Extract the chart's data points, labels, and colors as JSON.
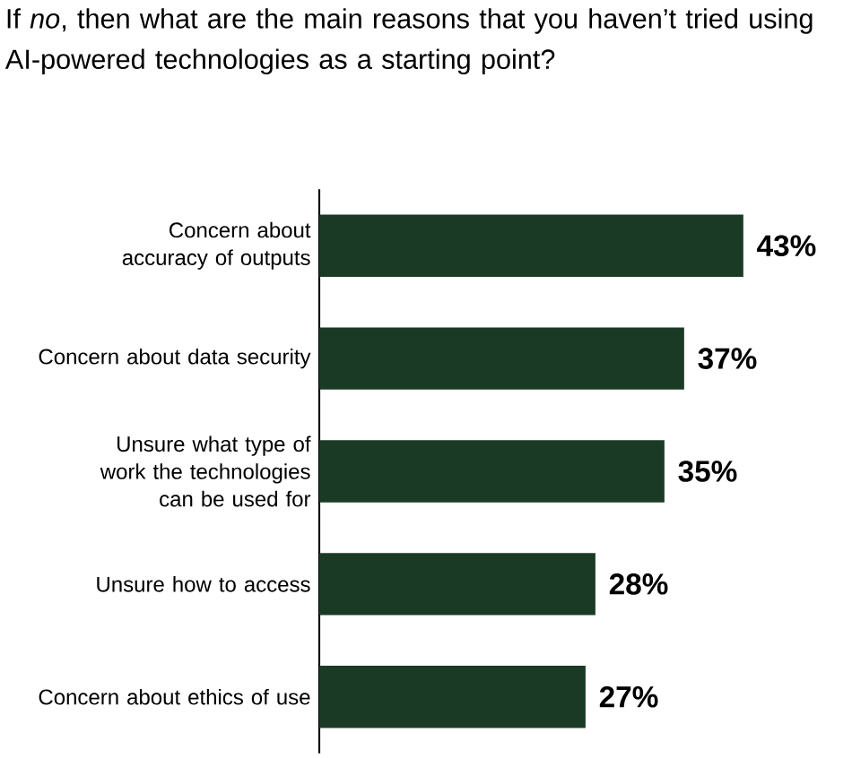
{
  "chart_data": {
    "type": "bar",
    "orientation": "horizontal",
    "title": "If *no*, then what are the main reasons that you haven’t tried using AI-powered technologies as a starting point?",
    "categories": [
      "Concern about accuracy of outputs",
      "Concern about data security",
      "Unsure what type of work the technologies can be used for",
      "Unsure how to access",
      "Concern about ethics of use"
    ],
    "values": [
      43,
      37,
      35,
      28,
      27
    ],
    "value_labels": [
      "43%",
      "37%",
      "35%",
      "28%",
      "27%"
    ],
    "color": "#1b3a26"
  }
}
